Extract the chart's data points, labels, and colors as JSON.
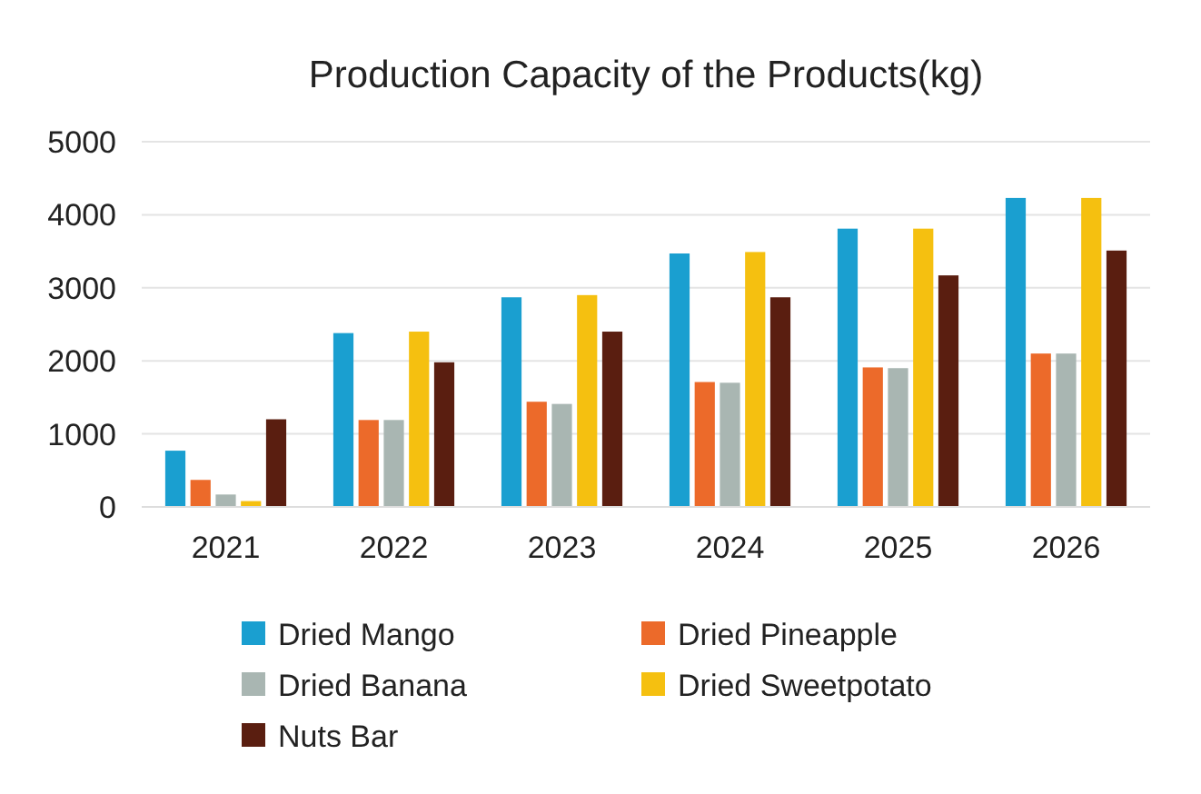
{
  "chart_data": {
    "type": "bar",
    "title": "Production Capacity of the Products(kg)",
    "categories": [
      "2021",
      "2022",
      "2023",
      "2024",
      "2025",
      "2026"
    ],
    "ylim": [
      0,
      5000
    ],
    "yticks": [
      0,
      1000,
      2000,
      3000,
      4000,
      5000
    ],
    "grid": "y",
    "legend": "bottom",
    "series": [
      {
        "name": "Dried Mango",
        "color": "#1a9fd0",
        "values": [
          770,
          2380,
          2870,
          3470,
          3810,
          4230
        ]
      },
      {
        "name": "Dried Pineapple",
        "color": "#ec6a2a",
        "values": [
          370,
          1190,
          1440,
          1710,
          1910,
          2100
        ]
      },
      {
        "name": "Dried Banana",
        "color": "#a9b6b2",
        "values": [
          170,
          1190,
          1410,
          1700,
          1900,
          2100
        ]
      },
      {
        "name": "Dried Sweetpotato",
        "color": "#f5c010",
        "values": [
          80,
          2400,
          2900,
          3490,
          3810,
          4230
        ]
      },
      {
        "name": "Nuts Bar",
        "color": "#5a1e10",
        "values": [
          1200,
          1980,
          2400,
          2870,
          3170,
          3510
        ]
      }
    ]
  }
}
